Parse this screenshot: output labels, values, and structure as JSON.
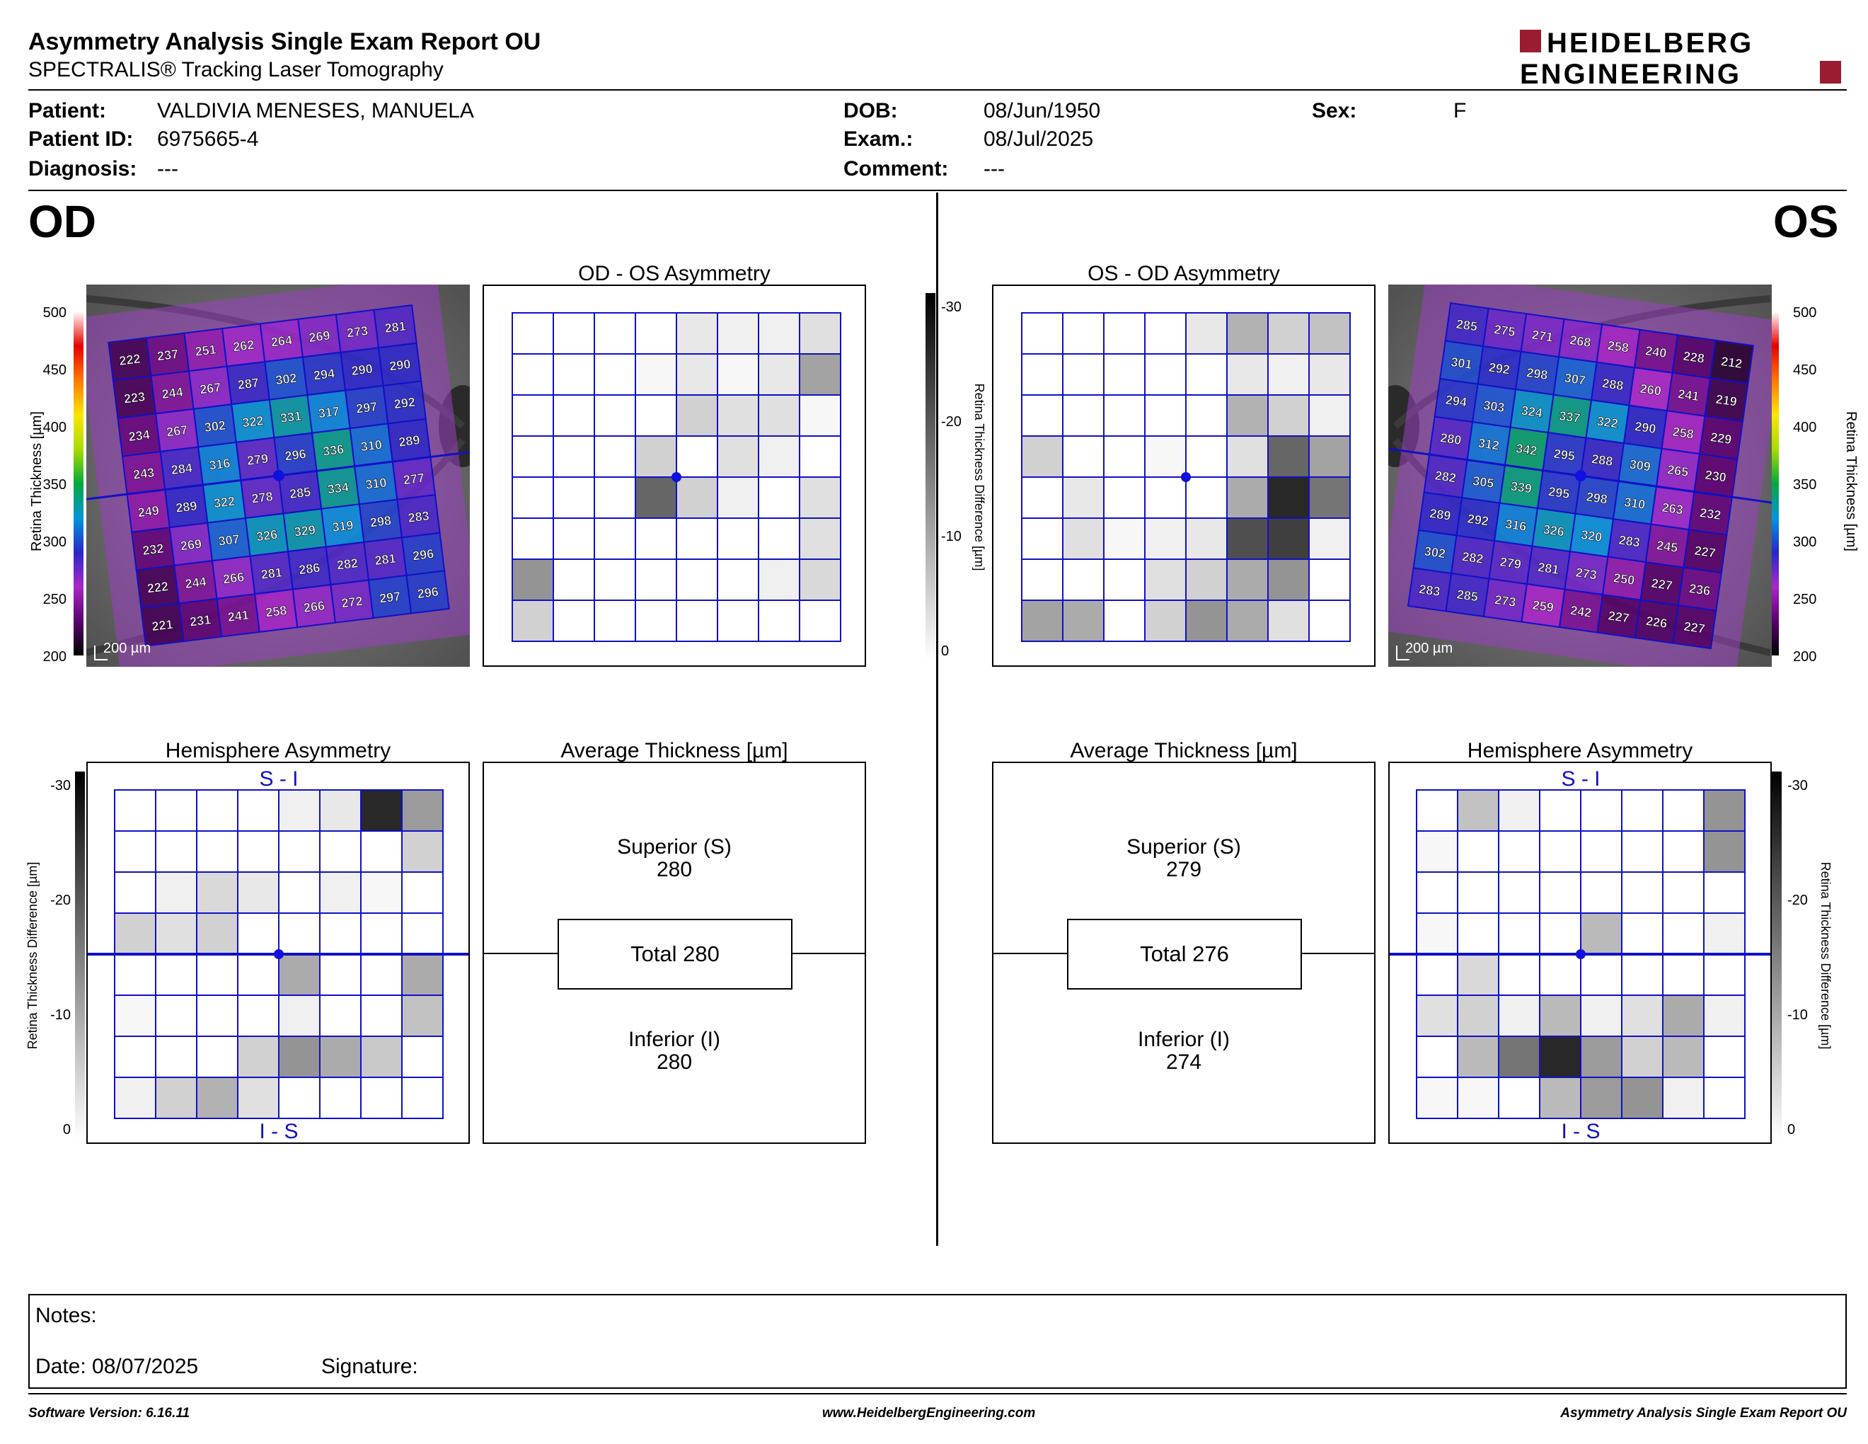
{
  "header": {
    "title": "Asymmetry Analysis Single Exam Report OU",
    "subtitle": "SPECTRALIS® Tracking Laser Tomography",
    "logo_line1": "HEIDELBERG",
    "logo_line2": "ENGINEERING",
    "brand_color": "#9b1b30"
  },
  "patient": {
    "patient_label": "Patient:",
    "patient_value": "VALDIVIA MENESES, MANUELA",
    "id_label": "Patient ID:",
    "id_value": "6975665-4",
    "diagnosis_label": "Diagnosis:",
    "diagnosis_value": "---",
    "dob_label": "DOB:",
    "dob_value": "08/Jun/1950",
    "exam_label": "Exam.:",
    "exam_value": "08/Jul/2025",
    "comment_label": "Comment:",
    "comment_value": "---",
    "sex_label": "Sex:",
    "sex_value": "F"
  },
  "od": {
    "eye_label": "OD",
    "asym_title": "OD - OS Asymmetry",
    "hemi_title": "Hemisphere Asymmetry",
    "avg_title": "Average Thickness [µm]",
    "superior_label": "Superior (S)",
    "superior_value": "280",
    "total_label": "Total 280",
    "inferior_label": "Inferior (I)",
    "inferior_value": "280",
    "scale_bar": "200 µm",
    "hemi_top_label": "S - I",
    "hemi_bottom_label": "I - S",
    "thickness_grid": [
      [
        222,
        237,
        251,
        262,
        264,
        269,
        273,
        281
      ],
      [
        223,
        244,
        267,
        287,
        302,
        294,
        290,
        290
      ],
      [
        234,
        267,
        302,
        322,
        331,
        317,
        297,
        292
      ],
      [
        243,
        284,
        316,
        279,
        296,
        336,
        310,
        289
      ],
      [
        249,
        289,
        322,
        278,
        285,
        334,
        310,
        277
      ],
      [
        232,
        269,
        307,
        326,
        329,
        319,
        298,
        283
      ],
      [
        222,
        244,
        266,
        281,
        286,
        282,
        281,
        296
      ],
      [
        221,
        231,
        241,
        258,
        266,
        272,
        297,
        296
      ]
    ],
    "asym_grid": [
      [
        0,
        0,
        0,
        0,
        3,
        2,
        2,
        4
      ],
      [
        0,
        0,
        0,
        1,
        3,
        1,
        3,
        12
      ],
      [
        0,
        0,
        0,
        0,
        6,
        4,
        4,
        1
      ],
      [
        0,
        0,
        0,
        6,
        0,
        4,
        2,
        0
      ],
      [
        0,
        0,
        0,
        20,
        6,
        2,
        0,
        4
      ],
      [
        0,
        0,
        0,
        0,
        0,
        0,
        0,
        4
      ],
      [
        14,
        0,
        0,
        0,
        0,
        0,
        2,
        5
      ],
      [
        6,
        0,
        0,
        0,
        0,
        0,
        0,
        0
      ]
    ],
    "hemi_grid": [
      [
        0,
        0,
        0,
        0,
        2,
        3,
        28,
        13
      ],
      [
        0,
        0,
        0,
        0,
        0,
        0,
        0,
        6
      ],
      [
        0,
        2,
        5,
        3,
        0,
        2,
        1,
        0
      ],
      [
        6,
        4,
        6,
        0,
        0,
        0,
        0,
        0
      ],
      [
        0,
        0,
        0,
        0,
        11,
        0,
        0,
        11
      ],
      [
        1,
        0,
        0,
        0,
        2,
        0,
        0,
        8
      ],
      [
        0,
        0,
        0,
        6,
        14,
        11,
        7,
        0
      ],
      [
        2,
        6,
        10,
        4,
        0,
        0,
        0,
        0
      ]
    ]
  },
  "os": {
    "eye_label": "OS",
    "asym_title": "OS - OD Asymmetry",
    "hemi_title": "Hemisphere Asymmetry",
    "avg_title": "Average Thickness [µm]",
    "superior_label": "Superior (S)",
    "superior_value": "279",
    "total_label": "Total 276",
    "inferior_label": "Inferior (I)",
    "inferior_value": "274",
    "scale_bar": "200 µm",
    "hemi_top_label": "S - I",
    "hemi_bottom_label": "I - S",
    "thickness_grid": [
      [
        285,
        275,
        271,
        268,
        258,
        240,
        228,
        212
      ],
      [
        301,
        292,
        298,
        307,
        288,
        260,
        241,
        219
      ],
      [
        294,
        303,
        324,
        337,
        322,
        290,
        258,
        229
      ],
      [
        280,
        312,
        342,
        295,
        288,
        309,
        265,
        230
      ],
      [
        282,
        305,
        339,
        295,
        298,
        310,
        263,
        232
      ],
      [
        289,
        292,
        316,
        326,
        320,
        283,
        245,
        227
      ],
      [
        302,
        282,
        279,
        281,
        273,
        250,
        227,
        236
      ],
      [
        283,
        285,
        273,
        259,
        242,
        227,
        226,
        227
      ]
    ],
    "asym_grid": [
      [
        0,
        0,
        0,
        0,
        3,
        10,
        6,
        8
      ],
      [
        0,
        0,
        0,
        0,
        0,
        3,
        2,
        3
      ],
      [
        0,
        0,
        0,
        0,
        0,
        10,
        6,
        2
      ],
      [
        6,
        0,
        0,
        1,
        0,
        4,
        20,
        12
      ],
      [
        0,
        3,
        0,
        0,
        0,
        11,
        28,
        18
      ],
      [
        0,
        4,
        1,
        2,
        3,
        23,
        25,
        2
      ],
      [
        0,
        0,
        0,
        4,
        6,
        11,
        14,
        0
      ],
      [
        12,
        11,
        0,
        6,
        14,
        11,
        4,
        0
      ]
    ],
    "hemi_grid": [
      [
        0,
        8,
        2,
        0,
        0,
        0,
        0,
        14
      ],
      [
        1,
        0,
        0,
        0,
        0,
        0,
        0,
        14
      ],
      [
        0,
        0,
        0,
        0,
        0,
        0,
        0,
        0
      ],
      [
        1,
        0,
        0,
        0,
        9,
        0,
        0,
        2
      ],
      [
        0,
        5,
        0,
        0,
        0,
        0,
        0,
        0
      ],
      [
        4,
        6,
        2,
        9,
        2,
        4,
        11,
        2
      ],
      [
        0,
        9,
        18,
        28,
        13,
        6,
        9,
        0
      ],
      [
        1,
        1,
        0,
        9,
        13,
        14,
        2,
        0
      ]
    ]
  },
  "scales": {
    "thickness_axis_label": "Retina  Thickness [µm]",
    "thickness_ticks": [
      "500",
      "450",
      "400",
      "350",
      "300",
      "250",
      "200"
    ],
    "diff_axis_label": "Retina Thickness Difference [µm]",
    "diff_ticks": [
      "-30",
      "-20",
      "-10",
      "0"
    ]
  },
  "notes": {
    "notes_label": "Notes:",
    "date_label": "Date: 08/07/2025",
    "signature_label": "Signature:"
  },
  "footer": {
    "software": "Software Version: 6.16.11",
    "website": "www.HeidelbergEngineering.com",
    "report_name": "Asymmetry Analysis Single Exam Report OU"
  }
}
